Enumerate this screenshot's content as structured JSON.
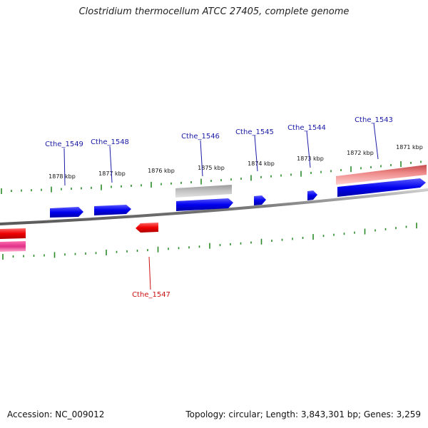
{
  "title": "Clostridium thermocellum ATCC 27405, complete genome",
  "footer": {
    "accession": "Accession: NC_009012",
    "summary": "Topology: circular; Length: 3,843,301 bp; Genes: 3,259"
  },
  "colors": {
    "forward_gene": "#0000ee",
    "reverse_gene": "#ee0000",
    "forward_label": "#1a1aa6",
    "reverse_label": "#cc1111",
    "tick": "#2a8a2a",
    "backbone": "#8a8a8a",
    "pseudo": "#bbbbbb",
    "highlight_pink": "#ee8888",
    "magenta": "#e0308a"
  },
  "kbp_labels": [
    "1878 kbp",
    "1877 kbp",
    "1876 kbp",
    "1875 kbp",
    "1874 kbp",
    "1873 kbp",
    "1872 kbp",
    "1871 kbp"
  ],
  "gene_labels": {
    "forward": [
      "Cthe_1549",
      "Cthe_1548",
      "Cthe_1546",
      "Cthe_1545",
      "Cthe_1544",
      "Cthe_1543"
    ],
    "reverse": [
      "Cthe_1547"
    ]
  }
}
